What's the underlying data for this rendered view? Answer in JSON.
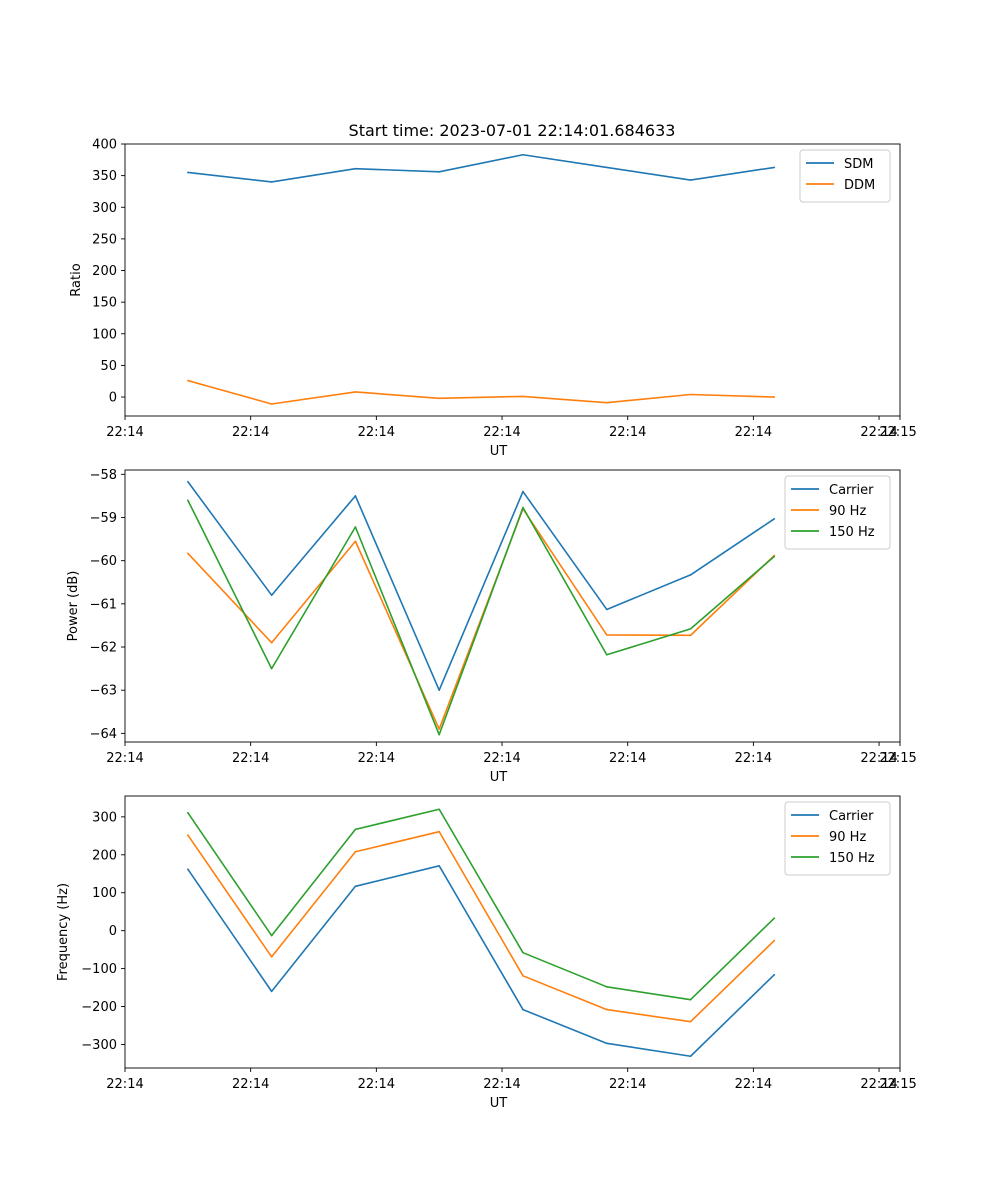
{
  "figure": {
    "title": "Start time: 2023-07-01 22:14:01.684633"
  },
  "chart_data": [
    {
      "type": "line",
      "title": "Start time: 2023-07-01 22:14:01.684633",
      "xlabel": "UT",
      "ylabel": "Ratio",
      "xlim": [
        -0.75,
        8.5
      ],
      "x": [
        0,
        1,
        2,
        3,
        4,
        5,
        6,
        7
      ],
      "xticks": [
        -0.75,
        0.75,
        2.25,
        3.75,
        5.25,
        6.75,
        8.25
      ],
      "xtick_labels": [
        "22:14",
        "22:14",
        "22:14",
        "22:14",
        "22:14",
        "22:14",
        "22:14"
      ],
      "extra_xtick": {
        "value": 8.5,
        "label": "22:15"
      },
      "ylim": [
        -30,
        400
      ],
      "yticks": [
        0,
        50,
        100,
        150,
        200,
        250,
        300,
        350,
        400
      ],
      "ytick_labels": [
        "0",
        "50",
        "100",
        "150",
        "200",
        "250",
        "300",
        "350",
        "400"
      ],
      "legend": "top-right",
      "series": [
        {
          "name": "SDM",
          "color": "#1f77b4",
          "values": [
            355,
            340,
            361,
            356,
            383,
            363,
            343,
            363
          ]
        },
        {
          "name": "DDM",
          "color": "#ff7f0e",
          "values": [
            26,
            -11,
            8,
            -2,
            1,
            -9,
            4,
            0
          ]
        }
      ]
    },
    {
      "type": "line",
      "title": "",
      "xlabel": "UT",
      "ylabel": "Power (dB)",
      "xlim": [
        -0.75,
        8.5
      ],
      "x": [
        0,
        1,
        2,
        3,
        4,
        5,
        6,
        7
      ],
      "xticks": [
        -0.75,
        0.75,
        2.25,
        3.75,
        5.25,
        6.75,
        8.25
      ],
      "xtick_labels": [
        "22:14",
        "22:14",
        "22:14",
        "22:14",
        "22:14",
        "22:14",
        "22:14"
      ],
      "extra_xtick": {
        "value": 8.5,
        "label": "22:15"
      },
      "ylim": [
        -64.2,
        -57.9
      ],
      "yticks": [
        -64,
        -63,
        -62,
        -61,
        -60,
        -59,
        -58
      ],
      "ytick_labels": [
        "−64",
        "−63",
        "−62",
        "−61",
        "−60",
        "−59",
        "−58"
      ],
      "legend": "top-right",
      "series": [
        {
          "name": "Carrier",
          "color": "#1f77b4",
          "values": [
            -58.17,
            -60.8,
            -58.5,
            -63.0,
            -58.4,
            -61.13,
            -60.33,
            -59.03
          ]
        },
        {
          "name": "90 Hz",
          "color": "#ff7f0e",
          "values": [
            -59.83,
            -61.9,
            -59.55,
            -63.9,
            -58.8,
            -61.72,
            -61.73,
            -59.88
          ]
        },
        {
          "name": "150 Hz",
          "color": "#2ca02c",
          "values": [
            -58.6,
            -62.5,
            -59.22,
            -64.03,
            -58.77,
            -62.18,
            -61.58,
            -59.9
          ]
        }
      ]
    },
    {
      "type": "line",
      "title": "",
      "xlabel": "UT",
      "ylabel": "Frequency (Hz)",
      "xlim": [
        -0.75,
        8.5
      ],
      "x": [
        0,
        1,
        2,
        3,
        4,
        5,
        6,
        7
      ],
      "xticks": [
        -0.75,
        0.75,
        2.25,
        3.75,
        5.25,
        6.75,
        8.25
      ],
      "xtick_labels": [
        "22:14",
        "22:14",
        "22:14",
        "22:14",
        "22:14",
        "22:14",
        "22:14"
      ],
      "extra_xtick": {
        "value": 8.5,
        "label": "22:15"
      },
      "ylim": [
        -362,
        355
      ],
      "yticks": [
        -300,
        -200,
        -100,
        0,
        100,
        200,
        300
      ],
      "ytick_labels": [
        "−300",
        "−200",
        "−100",
        "0",
        "100",
        "200",
        "300"
      ],
      "legend": "top-right",
      "series": [
        {
          "name": "Carrier",
          "color": "#1f77b4",
          "values": [
            162,
            -160,
            117,
            171,
            -208,
            -297,
            -331,
            -116
          ]
        },
        {
          "name": "90 Hz",
          "color": "#ff7f0e",
          "values": [
            252,
            -69,
            208,
            261,
            -119,
            -208,
            -240,
            -26
          ]
        },
        {
          "name": "150 Hz",
          "color": "#2ca02c",
          "values": [
            311,
            -13,
            267,
            320,
            -58,
            -148,
            -182,
            33
          ]
        }
      ]
    }
  ]
}
